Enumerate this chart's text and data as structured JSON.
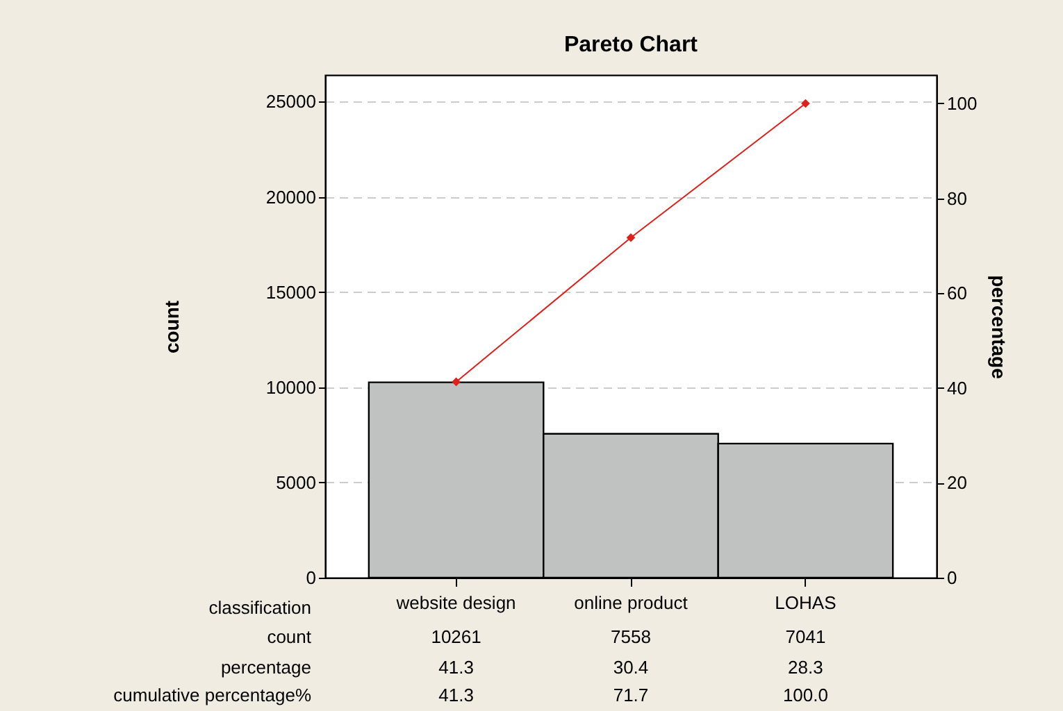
{
  "chart_data": {
    "type": "bar",
    "title": "Pareto Chart",
    "xlabel": "classification",
    "ylabel": "count",
    "y2label": "percentage",
    "categories": [
      "website design",
      "online product",
      "LOHAS"
    ],
    "series": [
      {
        "color": "#c0c1c1",
        "values": [
          10261,
          7558,
          7041
        ]
      },
      {
        "type": "line",
        "axis": "y2",
        "color": "#e0201b",
        "values": [
          41.3,
          71.7,
          100.0
        ]
      }
    ],
    "annotations": [
      "count",
      "10261",
      "7558",
      "7041",
      "percentage",
      "41.3",
      "30.4",
      "28.3",
      "cumulative percentage%",
      "41.3",
      "71.7",
      "100.0"
    ],
    "ylim": [
      0,
      26400
    ],
    "yticks": [
      0,
      5000,
      10000,
      15000,
      20000,
      25000
    ],
    "y2lim": [
      0,
      106
    ],
    "y2ticks": [
      0,
      20,
      40,
      60,
      80,
      100
    ],
    "grid": "y",
    "legend": false,
    "marker": "diamond",
    "line_style": "solid"
  }
}
